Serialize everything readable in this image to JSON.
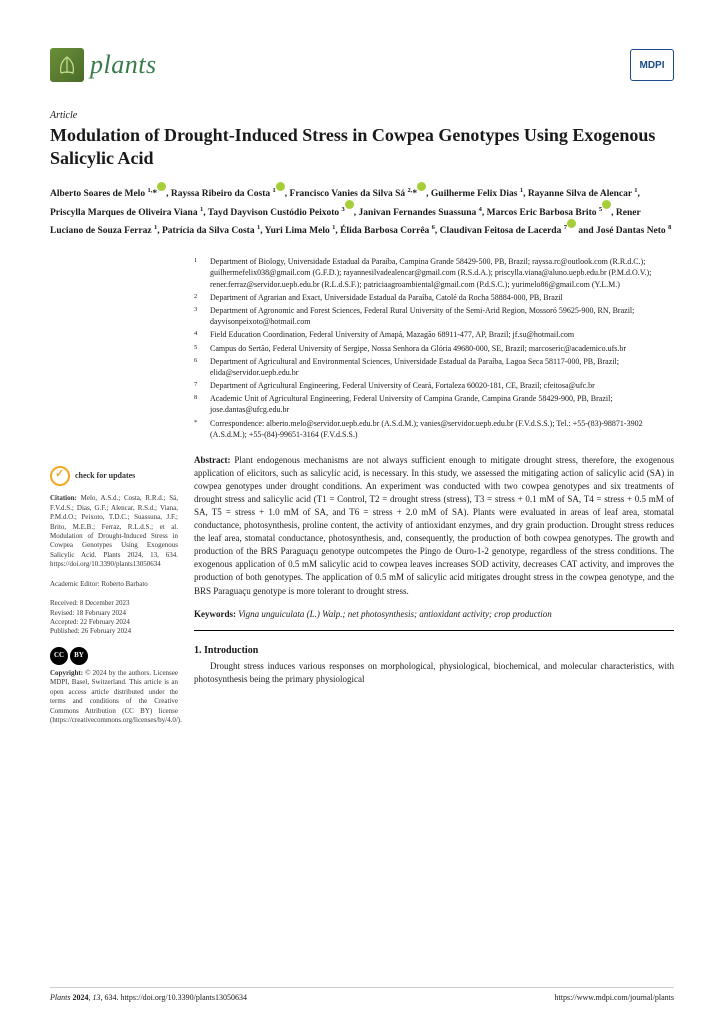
{
  "journal_name": "plants",
  "publisher_badge": "MDPI",
  "article_type": "Article",
  "title": "Modulation of Drought-Induced Stress in Cowpea Genotypes Using Exogenous Salicylic Acid",
  "authors_html": "Alberto Soares de Melo <sup>1,</sup>*, Rayssa Ribeiro da Costa <sup>1</sup>, Francisco Vanies da Silva Sá <sup>2,</sup>*, Guilherme Felix Dias <sup>1</sup>, Rayanne Silva de Alencar <sup>1</sup>, Priscylla Marques de Oliveira Viana <sup>1</sup>, Tayd Dayvison Custódio Peixoto <sup>3</sup>, Janivan Fernandes Suassuna <sup>4</sup>, Marcos Eric Barbosa Brito <sup>5</sup>, Rener Luciano de Souza Ferraz <sup>1</sup>, Patrícia da Silva Costa <sup>1</sup>, Yuri Lima Melo <sup>1</sup>, Élida Barbosa Corrêa <sup>6</sup>, Claudivan Feitosa de Lacerda <sup>7</sup> and José Dantas Neto <sup>8</sup>",
  "affiliations": [
    {
      "n": "1",
      "t": "Department of Biology, Universidade Estadual da Paraíba, Campina Grande 58429-500, PB, Brazil; rayssa.rc@outlook.com (R.R.d.C.); guilhermefelix038@gmail.com (G.F.D.); rayannesilvadealencar@gmail.com (R.S.d.A.); priscylla.viana@aluno.uepb.edu.br (P.M.d.O.V.); rener.ferraz@servidor.uepb.edu.br (R.L.d.S.F.); patriciaagroambiental@gmail.com (P.d.S.C.); yurimelo86@gmail.com (Y.L.M.)"
    },
    {
      "n": "2",
      "t": "Department of Agrarian and Exact, Universidade Estadual da Paraíba, Catolé da Rocha 58884-000, PB, Brazil"
    },
    {
      "n": "3",
      "t": "Department of Agronomic and Forest Sciences, Federal Rural University of the Semi-Arid Region, Mossoró 59625-900, RN, Brazil; dayvisonpeixoto@hotmail.com"
    },
    {
      "n": "4",
      "t": "Field Education Coordination, Federal University of Amapá, Mazagão 68911-477, AP, Brazil; jf.su@hotmail.com"
    },
    {
      "n": "5",
      "t": "Campus do Sertão, Federal University of Sergipe, Nossa Senhora da Glória 49680-000, SE, Brazil; marcoseric@academico.ufs.br"
    },
    {
      "n": "6",
      "t": "Department of Agricultural and Environmental Sciences, Universidade Estadual da Paraíba, Lagoa Seca 58117-000, PB, Brazil; elida@servidor.uepb.edu.br"
    },
    {
      "n": "7",
      "t": "Department of Agricultural Engineering, Federal University of Ceará, Fortaleza 60020-181, CE, Brazil; cfeitosa@ufc.br"
    },
    {
      "n": "8",
      "t": "Academic Unit of Agricultural Engineering, Federal University of Campina Grande, Campina Grande 58429-900, PB, Brazil; jose.dantas@ufcg.edu.br"
    },
    {
      "n": "*",
      "t": "Correspondence: alberto.melo@servidor.uepb.edu.br (A.S.d.M.); vanies@servidor.uepb.edu.br (F.V.d.S.S.); Tel.: +55-(83)-98871-3902 (A.S.d.M.); +55-(84)-99651-3164 (F.V.d.S.S.)"
    }
  ],
  "check_updates": "check for updates",
  "citation_label": "Citation:",
  "citation_text": "Melo, A.S.d.; Costa, R.R.d.; Sá, F.V.d.S.; Dias, G.F.; Alencar, R.S.d.; Viana, P.M.d.O.; Peixoto, T.D.C.; Suassuna, J.F.; Brito, M.E.B.; Ferraz, R.L.d.S.; et al. Modulation of Drought-Induced Stress in Cowpea Genotypes Using Exogenous Salicylic Acid. Plants 2024, 13, 634. https://doi.org/10.3390/plants13050634",
  "editor_label": "Academic Editor:",
  "editor_name": "Roberto Barbato",
  "dates": {
    "received": "Received: 8 December 2023",
    "revised": "Revised: 18 February 2024",
    "accepted": "Accepted: 22 February 2024",
    "published": "Published: 26 February 2024"
  },
  "copyright_label": "Copyright:",
  "copyright_text": "© 2024 by the authors. Licensee MDPI, Basel, Switzerland. This article is an open access article distributed under the terms and conditions of the Creative Commons Attribution (CC BY) license (https://creativecommons.org/licenses/by/4.0/).",
  "abstract_label": "Abstract:",
  "abstract_text": "Plant endogenous mechanisms are not always sufficient enough to mitigate drought stress, therefore, the exogenous application of elicitors, such as salicylic acid, is necessary. In this study, we assessed the mitigating action of salicylic acid (SA) in cowpea genotypes under drought conditions. An experiment was conducted with two cowpea genotypes and six treatments of drought stress and salicylic acid (T1 = Control, T2 = drought stress (stress), T3 = stress + 0.1 mM of SA, T4 = stress + 0.5 mM of SA, T5 = stress + 1.0 mM of SA, and T6 = stress + 2.0 mM of SA). Plants were evaluated in areas of leaf area, stomatal conductance, photosynthesis, proline content, the activity of antioxidant enzymes, and dry grain production. Drought stress reduces the leaf area, stomatal conductance, photosynthesis, and, consequently, the production of both cowpea genotypes. The growth and production of the BRS Paraguaçu genotype outcompetes the Pingo de Ouro-1-2 genotype, regardless of the stress conditions. The exogenous application of 0.5 mM salicylic acid to cowpea leaves increases SOD activity, decreases CAT activity, and improves the production of both genotypes. The application of 0.5 mM of salicylic acid mitigates drought stress in the cowpea genotype, and the BRS Paraguaçu genotype is more tolerant to drought stress.",
  "keywords_label": "Keywords:",
  "keywords_text": "Vigna unguiculata (L.) Walp.; net photosynthesis; antioxidant activity; crop production",
  "intro_heading": "1. Introduction",
  "intro_text": "Drought stress induces various responses on morphological, physiological, biochemical, and molecular characteristics, with photosynthesis being the primary physiological",
  "footer_left": "Plants 2024, 13, 634. https://doi.org/10.3390/plants13050634",
  "footer_right": "https://www.mdpi.com/journal/plants",
  "colors": {
    "journal_green": "#3a7a4a",
    "leaf_bg": "#4a6b28",
    "mdpi_blue": "#1a4b8c",
    "orcid_green": "#a6ce39",
    "check_orange": "#f5a623"
  }
}
